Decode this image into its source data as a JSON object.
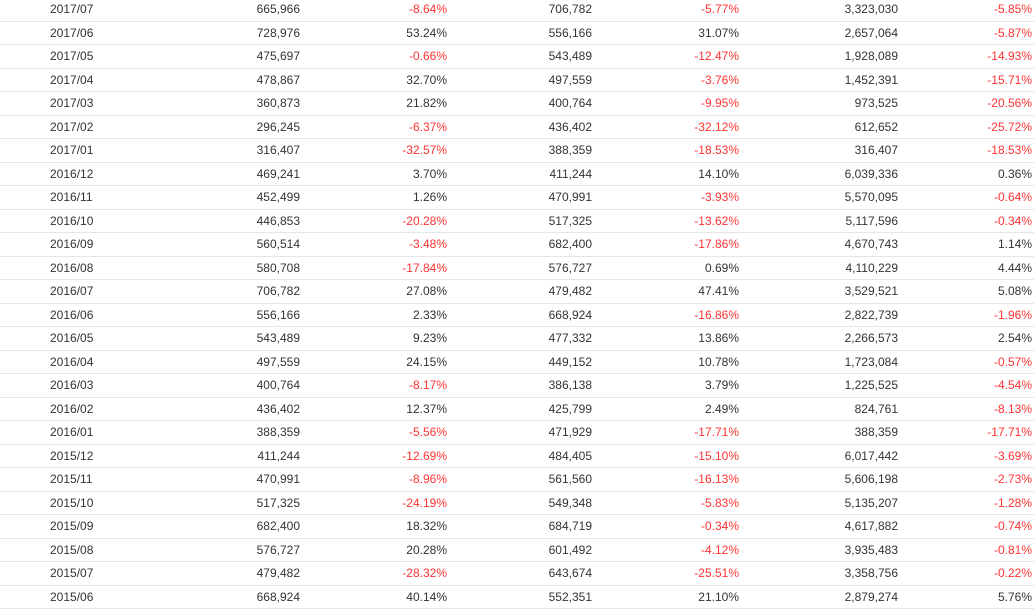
{
  "colors": {
    "text": "#333333",
    "negative": "#ff3333",
    "row_border": "#e6e6e6"
  },
  "rows": [
    {
      "month": "2017/07",
      "v1": "665,966",
      "c1": "-8.64%",
      "v2": "706,782",
      "c2": "-5.77%",
      "cum": "3,323,030",
      "cc": "-5.85%"
    },
    {
      "month": "2017/06",
      "v1": "728,976",
      "c1": "53.24%",
      "v2": "556,166",
      "c2": "31.07%",
      "cum": "2,657,064",
      "cc": "-5.87%"
    },
    {
      "month": "2017/05",
      "v1": "475,697",
      "c1": "-0.66%",
      "v2": "543,489",
      "c2": "-12.47%",
      "cum": "1,928,089",
      "cc": "-14.93%"
    },
    {
      "month": "2017/04",
      "v1": "478,867",
      "c1": "32.70%",
      "v2": "497,559",
      "c2": "-3.76%",
      "cum": "1,452,391",
      "cc": "-15.71%"
    },
    {
      "month": "2017/03",
      "v1": "360,873",
      "c1": "21.82%",
      "v2": "400,764",
      "c2": "-9.95%",
      "cum": "973,525",
      "cc": "-20.56%"
    },
    {
      "month": "2017/02",
      "v1": "296,245",
      "c1": "-6.37%",
      "v2": "436,402",
      "c2": "-32.12%",
      "cum": "612,652",
      "cc": "-25.72%"
    },
    {
      "month": "2017/01",
      "v1": "316,407",
      "c1": "-32.57%",
      "v2": "388,359",
      "c2": "-18.53%",
      "cum": "316,407",
      "cc": "-18.53%"
    },
    {
      "month": "2016/12",
      "v1": "469,241",
      "c1": "3.70%",
      "v2": "411,244",
      "c2": "14.10%",
      "cum": "6,039,336",
      "cc": "0.36%"
    },
    {
      "month": "2016/11",
      "v1": "452,499",
      "c1": "1.26%",
      "v2": "470,991",
      "c2": "-3.93%",
      "cum": "5,570,095",
      "cc": "-0.64%"
    },
    {
      "month": "2016/10",
      "v1": "446,853",
      "c1": "-20.28%",
      "v2": "517,325",
      "c2": "-13.62%",
      "cum": "5,117,596",
      "cc": "-0.34%"
    },
    {
      "month": "2016/09",
      "v1": "560,514",
      "c1": "-3.48%",
      "v2": "682,400",
      "c2": "-17.86%",
      "cum": "4,670,743",
      "cc": "1.14%"
    },
    {
      "month": "2016/08",
      "v1": "580,708",
      "c1": "-17.84%",
      "v2": "576,727",
      "c2": "0.69%",
      "cum": "4,110,229",
      "cc": "4.44%"
    },
    {
      "month": "2016/07",
      "v1": "706,782",
      "c1": "27.08%",
      "v2": "479,482",
      "c2": "47.41%",
      "cum": "3,529,521",
      "cc": "5.08%"
    },
    {
      "month": "2016/06",
      "v1": "556,166",
      "c1": "2.33%",
      "v2": "668,924",
      "c2": "-16.86%",
      "cum": "2,822,739",
      "cc": "-1.96%"
    },
    {
      "month": "2016/05",
      "v1": "543,489",
      "c1": "9.23%",
      "v2": "477,332",
      "c2": "13.86%",
      "cum": "2,266,573",
      "cc": "2.54%"
    },
    {
      "month": "2016/04",
      "v1": "497,559",
      "c1": "24.15%",
      "v2": "449,152",
      "c2": "10.78%",
      "cum": "1,723,084",
      "cc": "-0.57%"
    },
    {
      "month": "2016/03",
      "v1": "400,764",
      "c1": "-8.17%",
      "v2": "386,138",
      "c2": "3.79%",
      "cum": "1,225,525",
      "cc": "-4.54%"
    },
    {
      "month": "2016/02",
      "v1": "436,402",
      "c1": "12.37%",
      "v2": "425,799",
      "c2": "2.49%",
      "cum": "824,761",
      "cc": "-8.13%"
    },
    {
      "month": "2016/01",
      "v1": "388,359",
      "c1": "-5.56%",
      "v2": "471,929",
      "c2": "-17.71%",
      "cum": "388,359",
      "cc": "-17.71%"
    },
    {
      "month": "2015/12",
      "v1": "411,244",
      "c1": "-12.69%",
      "v2": "484,405",
      "c2": "-15.10%",
      "cum": "6,017,442",
      "cc": "-3.69%"
    },
    {
      "month": "2015/11",
      "v1": "470,991",
      "c1": "-8.96%",
      "v2": "561,560",
      "c2": "-16.13%",
      "cum": "5,606,198",
      "cc": "-2.73%"
    },
    {
      "month": "2015/10",
      "v1": "517,325",
      "c1": "-24.19%",
      "v2": "549,348",
      "c2": "-5.83%",
      "cum": "5,135,207",
      "cc": "-1.28%"
    },
    {
      "month": "2015/09",
      "v1": "682,400",
      "c1": "18.32%",
      "v2": "684,719",
      "c2": "-0.34%",
      "cum": "4,617,882",
      "cc": "-0.74%"
    },
    {
      "month": "2015/08",
      "v1": "576,727",
      "c1": "20.28%",
      "v2": "601,492",
      "c2": "-4.12%",
      "cum": "3,935,483",
      "cc": "-0.81%"
    },
    {
      "month": "2015/07",
      "v1": "479,482",
      "c1": "-28.32%",
      "v2": "643,674",
      "c2": "-25.51%",
      "cum": "3,358,756",
      "cc": "-0.22%"
    },
    {
      "month": "2015/06",
      "v1": "668,924",
      "c1": "40.14%",
      "v2": "552,351",
      "c2": "21.10%",
      "cum": "2,879,274",
      "cc": "5.76%"
    }
  ]
}
